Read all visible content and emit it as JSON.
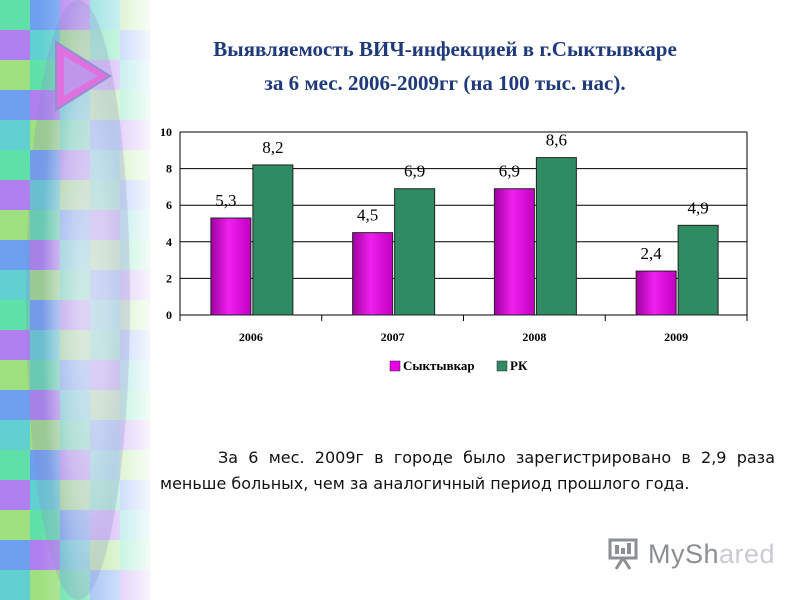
{
  "title": {
    "line1": "Выявляемость ВИЧ-инфекцией в г.Сыктывкаре",
    "line2": "за 6 мес. 2006-2009гг (на 100 тыс. нас)."
  },
  "chart_data": {
    "type": "bar",
    "categories": [
      "2006",
      "2007",
      "2008",
      "2009"
    ],
    "series": [
      {
        "name": "Сыктывкар",
        "values": [
          5.3,
          4.5,
          6.9,
          2.4
        ],
        "labels": [
          "5,3",
          "4,5",
          "6,9",
          "2,4"
        ],
        "color": "#e800e8"
      },
      {
        "name": "РК",
        "values": [
          8.2,
          6.9,
          8.6,
          4.9
        ],
        "labels": [
          "8,2",
          "6,9",
          "8,6",
          "4,9"
        ],
        "color": "#2e8b62"
      }
    ],
    "yticks": [
      "0",
      "2",
      "4",
      "6",
      "8",
      "10"
    ],
    "ylim": [
      0,
      10
    ],
    "grid": true,
    "legend_position": "bottom"
  },
  "body": {
    "text": "За 6 мес. 2009г в городе было зарегистрировано в 2,9 раза меньше больных, чем за аналогичный период прошлого года."
  },
  "logo": {
    "text_main": "MyShared",
    "text_part1": "My",
    "text_part2": "Sh",
    "text_part3": "ared",
    "icon": "presentation-board-icon"
  },
  "colors": {
    "title": "#1f3a7a",
    "magenta": "#e800e8",
    "green": "#2e8b62"
  }
}
